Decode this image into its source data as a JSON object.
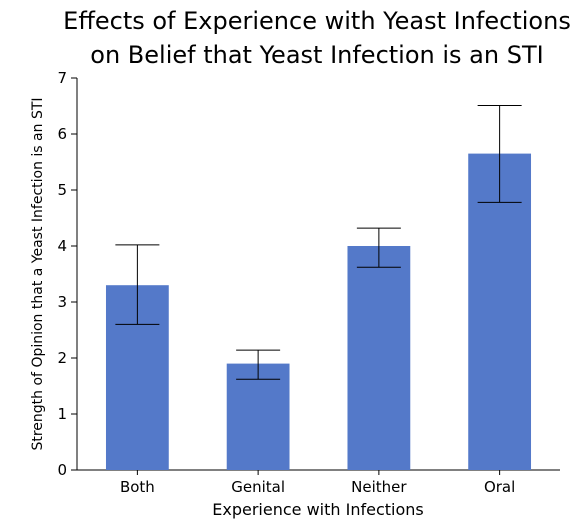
{
  "chart_data": {
    "type": "bar",
    "title": [
      "Effects of Experience with Yeast Infections",
      "on Belief that Yeast Infection is an STI"
    ],
    "xlabel": "Experience with Infections",
    "ylabel": "Strength of Opinion that a Yeast Infection is an STI",
    "ylim": [
      0,
      7
    ],
    "yticks": [
      "0",
      "1",
      "2",
      "3",
      "4",
      "5",
      "6",
      "7"
    ],
    "categories": [
      "Both",
      "Genital",
      "Neither",
      "Oral"
    ],
    "values": [
      3.3,
      1.9,
      4.0,
      5.65
    ],
    "error_low": [
      2.6,
      1.62,
      3.62,
      4.78
    ],
    "error_high": [
      4.02,
      2.14,
      4.32,
      6.51
    ],
    "grid": false,
    "bar_color": "#5479c9"
  }
}
